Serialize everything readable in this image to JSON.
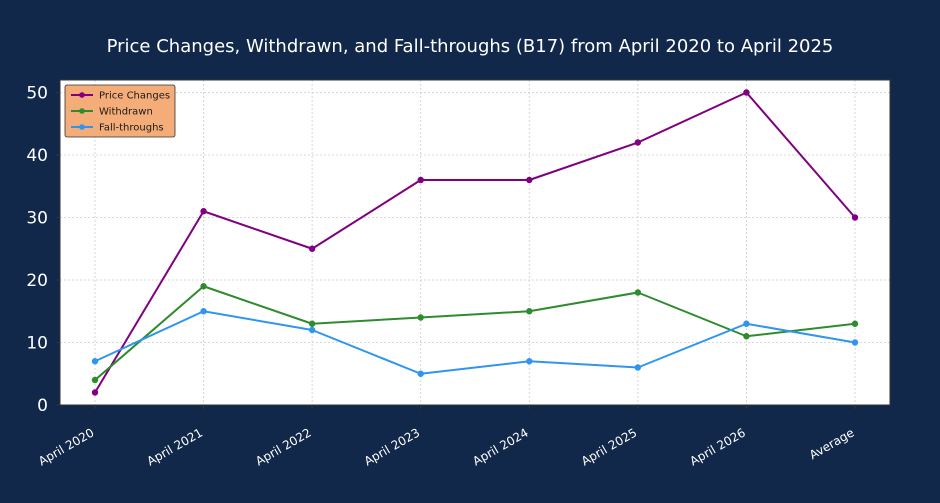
{
  "chart_data": {
    "type": "line",
    "title": "Price Changes, Withdrawn, and Fall-throughs (B17) from April 2020 to April 2025",
    "xlabel": "",
    "ylabel": "",
    "categories": [
      "April 2020",
      "April 2021",
      "April 2022",
      "April 2023",
      "April 2024",
      "April 2025",
      "April 2026",
      "Average"
    ],
    "ylim": [
      0,
      52
    ],
    "yticks": [
      0,
      10,
      20,
      30,
      40,
      50
    ],
    "grid": true,
    "legend_position": "top-left",
    "series": [
      {
        "name": "Price Changes",
        "color": "#800080",
        "values": [
          2,
          31,
          25,
          36,
          36,
          42,
          50,
          30
        ]
      },
      {
        "name": "Withdrawn",
        "color": "#2e8b2e",
        "values": [
          4,
          19,
          13,
          14,
          15,
          18,
          11,
          13
        ]
      },
      {
        "name": "Fall-throughs",
        "color": "#2f95f0",
        "values": [
          7,
          15,
          12,
          5,
          7,
          6,
          13,
          10
        ]
      }
    ]
  },
  "colors": {
    "background": "#12284a",
    "plot_background": "#ffffff",
    "legend_background": "#f4ad78"
  }
}
